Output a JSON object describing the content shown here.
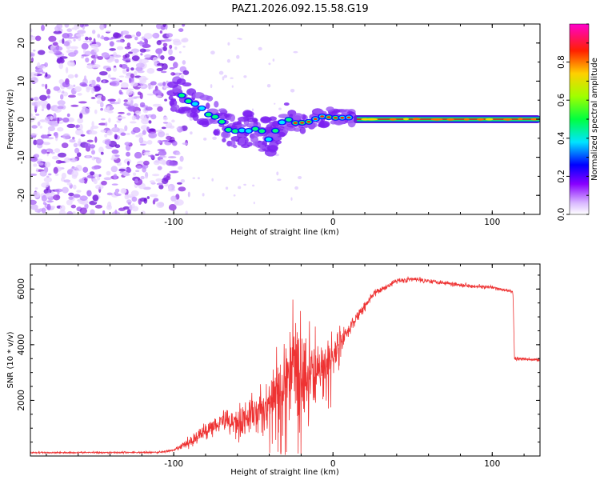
{
  "title": "PAZ1.2026.092.15.58.G19",
  "chart_data": [
    {
      "type": "heatmap",
      "name": "spectrogram",
      "xlabel": "Height of straight line (km)",
      "ylabel": "Frequency (Hz)",
      "xlim": [
        -190,
        130
      ],
      "ylim": [
        -25,
        25
      ],
      "x_ticks": [
        -100,
        0,
        100
      ],
      "y_ticks": [
        20,
        10,
        0,
        -10,
        -20
      ],
      "colorbar": {
        "label": "Normalized spectral amplitude",
        "range": [
          0,
          1
        ],
        "ticks": [
          0.0,
          0.2,
          0.4,
          0.6,
          0.8
        ]
      },
      "features": {
        "noise_region_x": [
          -190,
          -100
        ],
        "descending_trace": [
          [
            -100,
            7
          ],
          [
            -90,
            5
          ],
          [
            -80,
            2
          ],
          [
            -70,
            -1
          ],
          [
            -60,
            -4
          ],
          [
            -50,
            -2
          ],
          [
            -40,
            -5
          ],
          [
            -30,
            0
          ],
          [
            -20,
            -1.5
          ],
          [
            -10,
            0
          ],
          [
            0,
            1
          ],
          [
            10,
            0.5
          ]
        ],
        "carrier_line": {
          "x_start": 15,
          "x_end": 130,
          "frequency": 0
        }
      }
    },
    {
      "type": "line",
      "name": "snr",
      "xlabel": "Height of straight line (km)",
      "ylabel": "SNR (10 * v/v)",
      "xlim": [
        -190,
        130
      ],
      "ylim": [
        0,
        6900
      ],
      "x_ticks": [
        -100,
        0,
        100
      ],
      "y_ticks": [
        2000,
        4000,
        6000
      ],
      "color": "#ee3333",
      "envelope": [
        [
          -190,
          120
        ],
        [
          -110,
          130
        ],
        [
          -100,
          200
        ],
        [
          -90,
          500
        ],
        [
          -80,
          900
        ],
        [
          -70,
          1300
        ],
        [
          -60,
          1200
        ],
        [
          -50,
          1500
        ],
        [
          -40,
          1800
        ],
        [
          -30,
          2600
        ],
        [
          -25,
          3500
        ],
        [
          -20,
          2800
        ],
        [
          -10,
          3000
        ],
        [
          0,
          3600
        ],
        [
          5,
          4100
        ],
        [
          15,
          5000
        ],
        [
          25,
          5800
        ],
        [
          40,
          6300
        ],
        [
          50,
          6350
        ],
        [
          60,
          6300
        ],
        [
          80,
          6150
        ],
        [
          100,
          6050
        ],
        [
          113,
          5900
        ],
        [
          114,
          3500
        ],
        [
          130,
          3450
        ]
      ],
      "noise_amplitude": [
        [
          -190,
          40
        ],
        [
          -100,
          60
        ],
        [
          -90,
          300
        ],
        [
          -60,
          800
        ],
        [
          -40,
          1400
        ],
        [
          -25,
          2200
        ],
        [
          -10,
          1600
        ],
        [
          0,
          900
        ],
        [
          10,
          400
        ],
        [
          30,
          150
        ],
        [
          130,
          80
        ]
      ]
    }
  ]
}
